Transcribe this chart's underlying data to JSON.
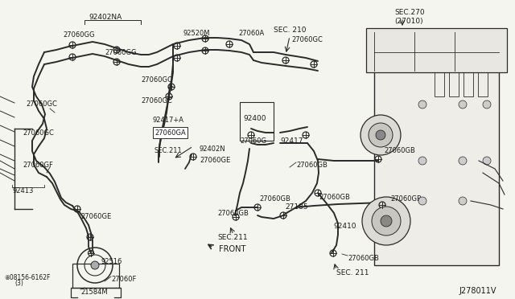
{
  "bg_color": "#f5f5f0",
  "line_color": "#2a2a2a",
  "text_color": "#1a1a1a",
  "figsize": [
    6.4,
    3.72
  ],
  "dpi": 100,
  "xlim": [
    0,
    640
  ],
  "ylim": [
    0,
    372
  ]
}
